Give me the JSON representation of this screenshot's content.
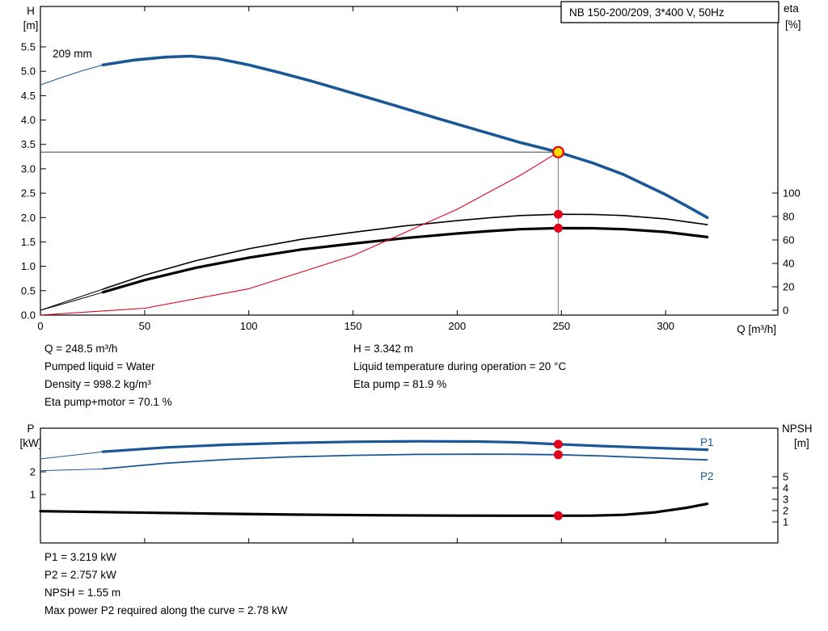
{
  "header": {
    "title_box": "NB 150-200/209, 3*400 V, 50Hz"
  },
  "top_chart": {
    "left_axis": {
      "line1": "H",
      "line2": "[m]",
      "ticks": [
        "0.0",
        "0.5",
        "1.0",
        "1.5",
        "2.0",
        "2.5",
        "3.0",
        "3.5",
        "4.0",
        "4.5",
        "5.0",
        "5.5"
      ]
    },
    "right_axis": {
      "line1": "eta",
      "line2": "[%]",
      "ticks": [
        "0",
        "20",
        "40",
        "60",
        "80",
        "100"
      ]
    },
    "x_axis": {
      "label": "Q [m³/h]",
      "ticks": [
        "0",
        "50",
        "100",
        "150",
        "200",
        "250",
        "300"
      ]
    },
    "impeller_label": "209 mm"
  },
  "bottom_chart": {
    "left_axis": {
      "line1": "P",
      "line2": "[kW]",
      "ticks": [
        "2",
        "1"
      ]
    },
    "right_axis": {
      "line1": "NPSH",
      "line2": "[m]",
      "ticks": [
        "5",
        "4",
        "3",
        "2",
        "1"
      ]
    },
    "p1_label": "P1",
    "p2_label": "P2"
  },
  "results_top": {
    "left": [
      "Q = 248.5 m³/h",
      "Pumped liquid = Water",
      "Density = 998.2 kg/m³",
      "Eta pump+motor = 70.1 %"
    ],
    "right": [
      "H = 3.342 m",
      "Liquid temperature during operation = 20 °C",
      "Eta pump = 81.9 %"
    ]
  },
  "results_bottom": [
    "P1 = 3.219 kW",
    "P2 = 2.757 kW",
    "NPSH = 1.55 m",
    "Max power P2 required along the curve = 2.78 kW"
  ],
  "colors": {
    "curve_blue": "#1a5796",
    "marker_red": "#e2001a",
    "duty_yellow": "#ffdd00",
    "black": "#000000"
  },
  "chart_data": [
    {
      "type": "line",
      "title": "NB 150-200/209, 3*400 V, 50Hz",
      "xlabel": "Q [m³/h]",
      "ylabel_left": "H [m]",
      "ylabel_right": "eta [%]",
      "xlim": [
        0,
        354
      ],
      "ylim_left": [
        0,
        6.3
      ],
      "ylim_right": [
        0,
        130
      ],
      "grid": false,
      "series": [
        {
          "name": "head_extension",
          "axis": "H",
          "x": [
            0,
            10,
            20,
            30
          ],
          "y": [
            4.72,
            4.87,
            5.01,
            5.13
          ]
        },
        {
          "name": "head_209mm",
          "axis": "H",
          "x": [
            30,
            45,
            60,
            72,
            85,
            100,
            115,
            130,
            150,
            170,
            190,
            210,
            230,
            248.5,
            265,
            280,
            300,
            310,
            320
          ],
          "y": [
            5.13,
            5.23,
            5.29,
            5.31,
            5.26,
            5.13,
            4.97,
            4.8,
            4.55,
            4.3,
            4.04,
            3.79,
            3.54,
            3.342,
            3.12,
            2.88,
            2.47,
            2.24,
            2.0
          ]
        },
        {
          "name": "eta_pump_extension",
          "axis": "eta",
          "x": [
            0,
            15,
            30
          ],
          "y": [
            0,
            9,
            18
          ]
        },
        {
          "name": "eta_pump",
          "axis": "eta",
          "x": [
            30,
            50,
            75,
            100,
            125,
            150,
            175,
            200,
            215,
            230,
            248.5,
            265,
            280,
            300,
            320
          ],
          "y": [
            18,
            30,
            42.5,
            52.5,
            60.5,
            66.5,
            72,
            76.5,
            78.8,
            80.8,
            81.9,
            81.8,
            80.8,
            78,
            73
          ]
        },
        {
          "name": "eta_pump_motor_extension",
          "axis": "eta",
          "x": [
            0,
            15,
            30
          ],
          "y": [
            0,
            7.5,
            15.4
          ]
        },
        {
          "name": "eta_pump_motor",
          "axis": "eta",
          "x": [
            30,
            50,
            75,
            100,
            125,
            150,
            175,
            200,
            215,
            230,
            248.5,
            265,
            280,
            300,
            320
          ],
          "y": [
            15.4,
            25.7,
            36.4,
            44.9,
            51.8,
            56.9,
            61.6,
            65.5,
            67.5,
            69.2,
            70.1,
            70.0,
            69.2,
            66.8,
            62.5
          ]
        },
        {
          "name": "system_curve",
          "axis": "H",
          "x": [
            0,
            50,
            100,
            150,
            200,
            230,
            248.5
          ],
          "y": [
            0,
            0.14,
            0.54,
            1.22,
            2.17,
            2.86,
            3.342
          ]
        }
      ],
      "duty_point": {
        "q": 248.5,
        "h": 3.342,
        "eta_pump": 81.9,
        "eta_pump_motor": 70.1
      }
    },
    {
      "type": "line",
      "xlabel": "Q [m³/h]",
      "ylabel_left": "P [kW]",
      "ylabel_right": "NPSH [m]",
      "xlim": [
        0,
        354
      ],
      "ylim_left_P": [
        0,
        3.9
      ],
      "ylim_right_NPSH": [
        0,
        9.3
      ],
      "grid": false,
      "series": [
        {
          "name": "p1_extension",
          "axis": "P",
          "x": [
            0,
            15,
            30
          ],
          "y": [
            2.57,
            2.73,
            2.89
          ]
        },
        {
          "name": "p1",
          "axis": "P",
          "x": [
            30,
            60,
            90,
            120,
            150,
            180,
            210,
            230,
            248.5,
            270,
            290,
            310,
            320
          ],
          "y": [
            2.89,
            3.08,
            3.2,
            3.28,
            3.33,
            3.35,
            3.34,
            3.3,
            3.219,
            3.14,
            3.07,
            3.01,
            2.98
          ]
        },
        {
          "name": "p2_extension",
          "axis": "P",
          "x": [
            0,
            15,
            30
          ],
          "y": [
            2.05,
            2.09,
            2.13
          ]
        },
        {
          "name": "p2",
          "axis": "P",
          "x": [
            30,
            60,
            90,
            120,
            150,
            180,
            210,
            230,
            248.5,
            270,
            290,
            310,
            320
          ],
          "y": [
            2.13,
            2.38,
            2.55,
            2.66,
            2.73,
            2.77,
            2.78,
            2.775,
            2.757,
            2.7,
            2.63,
            2.56,
            2.53
          ]
        },
        {
          "name": "npsh",
          "axis": "NPSH",
          "x": [
            0,
            40,
            80,
            120,
            160,
            200,
            230,
            248.5,
            265,
            280,
            295,
            310,
            320
          ],
          "y": [
            1.95,
            1.84,
            1.74,
            1.65,
            1.59,
            1.56,
            1.55,
            1.55,
            1.56,
            1.63,
            1.85,
            2.25,
            2.6
          ]
        }
      ],
      "duty_point": {
        "q": 248.5,
        "p1": 3.219,
        "p2": 2.757,
        "npsh": 1.55
      },
      "max_p2_along_curve_kw": 2.78
    }
  ]
}
